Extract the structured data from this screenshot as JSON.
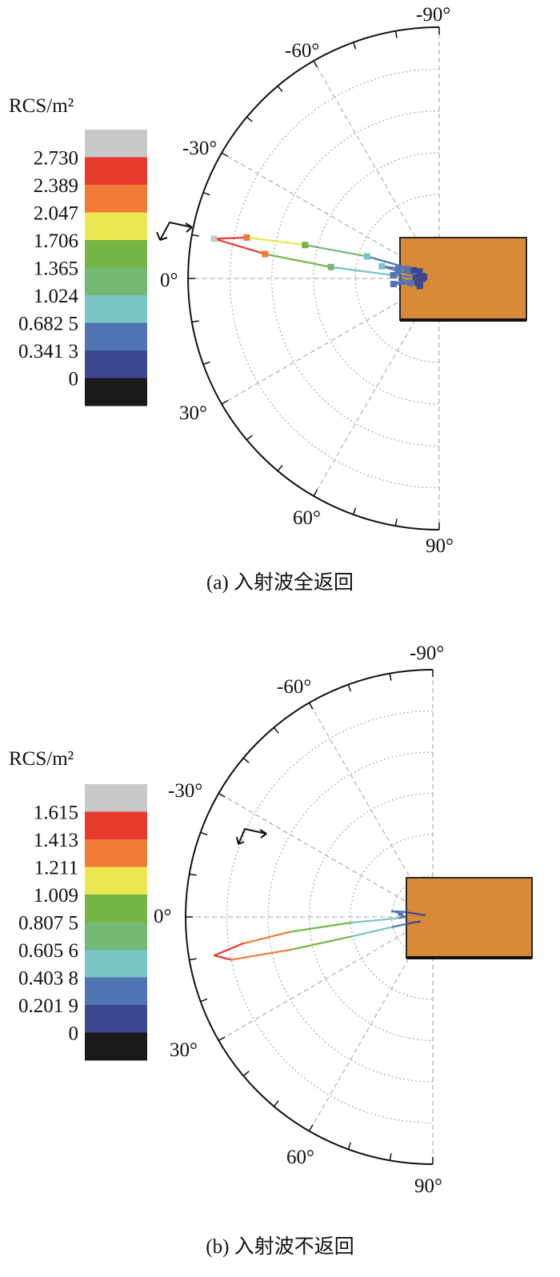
{
  "chart_data": [
    {
      "type": "polar-line",
      "caption": "(a) 入射波全返回",
      "colorbar": {
        "title": "RCS/m²",
        "ticks": [
          "2.730",
          "2.389",
          "2.047",
          "1.706",
          "1.365",
          "1.024",
          "0.682 5",
          "0.341 3",
          "0"
        ],
        "colors": [
          "#c8c8c8",
          "#e8392f",
          "#f07b35",
          "#ece650",
          "#74b543",
          "#74b874",
          "#78c4c4",
          "#5074b4",
          "#3e4890",
          "#1a1a1a"
        ]
      },
      "angle_ticks": [
        "-90°",
        "-60°",
        "-30°",
        "0°",
        "30°",
        "60°",
        "90°"
      ],
      "rmax": 3.0,
      "series": [
        {
          "points": [
            [
              -1,
              0.28
            ],
            [
              -3,
              0.22
            ],
            [
              -5,
              0.18
            ],
            [
              -8,
              0.2
            ],
            [
              -10,
              0.5
            ],
            [
              -12,
              0.7
            ],
            [
              -14,
              0.5
            ],
            [
              -16,
              0.4
            ],
            [
              -18,
              0.32
            ],
            [
              -20,
              0.25
            ],
            [
              -17,
              0.9
            ],
            [
              -14,
              1.65
            ],
            [
              -12,
              2.35
            ],
            [
              -10,
              2.73
            ],
            [
              -8,
              2.1
            ],
            [
              -6,
              1.3
            ],
            [
              -4,
              0.55
            ],
            [
              -2,
              0.25
            ],
            [
              1,
              0.2
            ],
            [
              3,
              0.25
            ],
            [
              5,
              0.45
            ],
            [
              7,
              0.55
            ],
            [
              9,
              0.35
            ],
            [
              12,
              0.26
            ],
            [
              15,
              0.24
            ],
            [
              18,
              0.24
            ],
            [
              21,
              0.25
            ]
          ],
          "markers": true
        }
      ]
    },
    {
      "type": "polar-line",
      "caption": "(b) 入射波不返回",
      "colorbar": {
        "title": "RCS/m²",
        "ticks": [
          "1.615",
          "1.413",
          "1.211",
          "1.009",
          "0.807 5",
          "0.605 6",
          "0.403 8",
          "0.201 9",
          "0"
        ],
        "colors": [
          "#c8c8c8",
          "#e8392f",
          "#f07b35",
          "#ece650",
          "#74b543",
          "#74b874",
          "#78c4c4",
          "#5074b4",
          "#3e4890",
          "#1a1a1a"
        ]
      },
      "angle_ticks": [
        "-90°",
        "-60°",
        "-30°",
        "0°",
        "30°",
        "60°",
        "90°"
      ],
      "rmax": 1.8,
      "series": [
        {
          "points": [
            [
              -12,
              0.06
            ],
            [
              -10,
              0.22
            ],
            [
              -8,
              0.3
            ],
            [
              -6,
              0.22
            ],
            [
              -4,
              0.25
            ],
            [
              -2,
              0.22
            ],
            [
              0,
              0.2
            ],
            [
              2,
              0.25
            ],
            [
              4,
              0.6
            ],
            [
              6,
              1.05
            ],
            [
              8,
              1.4
            ],
            [
              10,
              1.615
            ],
            [
              12,
              1.5
            ],
            [
              13,
              1.05
            ],
            [
              13.5,
              0.6
            ],
            [
              14,
              0.3
            ],
            [
              15,
              0.2
            ],
            [
              16,
              0.15
            ],
            [
              18,
              0.12
            ],
            [
              20,
              0.1
            ]
          ],
          "markers": false
        }
      ]
    }
  ]
}
